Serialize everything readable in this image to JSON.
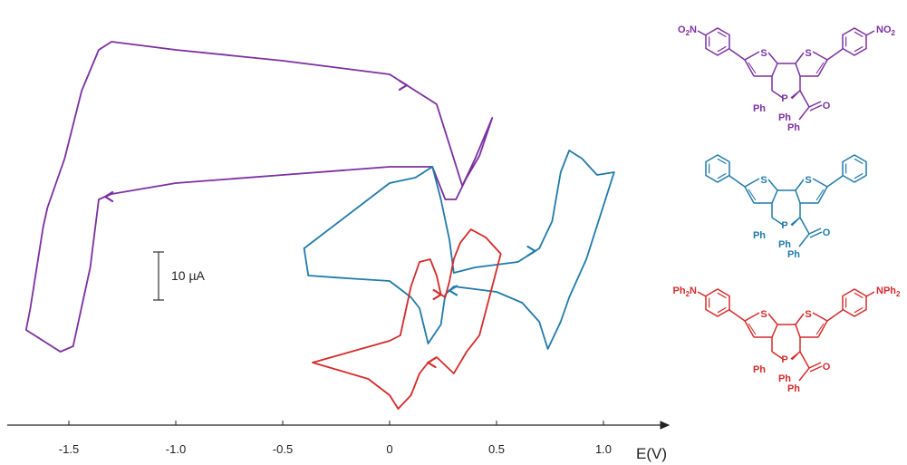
{
  "chart_data": {
    "type": "line",
    "title": "",
    "xlabel": "E(V)",
    "ylabel": "",
    "xlim": [
      -1.75,
      1.3
    ],
    "x_ticks": [
      {
        "value": -1.5,
        "label": "-1.5"
      },
      {
        "value": -1.0,
        "label": "-1.0"
      },
      {
        "value": -0.5,
        "label": "-0.5"
      },
      {
        "value": 0.0,
        "label": "0"
      },
      {
        "value": 0.5,
        "label": "0.5"
      },
      {
        "value": 1.0,
        "label": "1.0"
      }
    ],
    "scale_bar": {
      "label": "10 µA",
      "value_uA": 10
    },
    "grid": false,
    "series": [
      {
        "color": "#7b2fa0",
        "compound": "nitrophenyl-substituted",
        "points": [
          [
            0.48,
            -3.0
          ],
          [
            0.4,
            -4.5
          ],
          [
            0.34,
            -5.5
          ],
          [
            0.28,
            -4.0
          ],
          [
            0.22,
            -2.5
          ],
          [
            0.0,
            -1.4
          ],
          [
            -0.5,
            -0.9
          ],
          [
            -1.0,
            -0.5
          ],
          [
            -1.3,
            -0.2
          ],
          [
            -1.36,
            -0.5
          ],
          [
            -1.44,
            -2.0
          ],
          [
            -1.52,
            -4.5
          ],
          [
            -1.6,
            -6.3
          ],
          [
            -1.62,
            -7.0
          ],
          [
            -1.68,
            -10.0
          ],
          [
            -1.7,
            -10.8
          ],
          [
            -1.62,
            -11.2
          ],
          [
            -1.54,
            -11.6
          ],
          [
            -1.48,
            -11.4
          ],
          [
            -1.4,
            -8.5
          ],
          [
            -1.36,
            -6.0
          ],
          [
            -1.3,
            -5.8
          ],
          [
            -1.0,
            -5.4
          ],
          [
            -0.5,
            -5.1
          ],
          [
            0.0,
            -4.8
          ],
          [
            0.2,
            -4.8
          ],
          [
            0.26,
            -6.0
          ],
          [
            0.31,
            -6.0
          ],
          [
            0.36,
            -5.2
          ],
          [
            0.42,
            -4.4
          ],
          [
            0.48,
            -3.0
          ]
        ],
        "arrows": [
          {
            "x": 0.08,
            "dir": "right",
            "branch": "upper"
          },
          {
            "x": -1.33,
            "dir": "left",
            "branch": "lower"
          }
        ]
      },
      {
        "color": "#1f7aa8",
        "compound": "phenyl-substituted",
        "points": [
          [
            1.05,
            -5.0
          ],
          [
            0.97,
            -5.1
          ],
          [
            0.9,
            -4.5
          ],
          [
            0.84,
            -4.2
          ],
          [
            0.8,
            -5.0
          ],
          [
            0.76,
            -6.8
          ],
          [
            0.7,
            -7.8
          ],
          [
            0.6,
            -8.3
          ],
          [
            0.4,
            -8.5
          ],
          [
            0.3,
            -8.7
          ],
          [
            0.28,
            -7.5
          ],
          [
            0.24,
            -6.0
          ],
          [
            0.2,
            -4.8
          ],
          [
            0.16,
            -5.0
          ],
          [
            0.12,
            -5.2
          ],
          [
            0.0,
            -5.4
          ],
          [
            -0.4,
            -7.8
          ],
          [
            -0.38,
            -8.8
          ],
          [
            -0.2,
            -8.9
          ],
          [
            0.0,
            -9.0
          ],
          [
            0.1,
            -9.6
          ],
          [
            0.14,
            -10.0
          ],
          [
            0.18,
            -11.3
          ],
          [
            0.24,
            -10.6
          ],
          [
            0.26,
            -9.5
          ],
          [
            0.3,
            -9.2
          ],
          [
            0.4,
            -9.3
          ],
          [
            0.5,
            -9.4
          ],
          [
            0.62,
            -9.8
          ],
          [
            0.7,
            -10.5
          ],
          [
            0.74,
            -11.5
          ],
          [
            0.8,
            -10.5
          ],
          [
            0.84,
            -9.6
          ],
          [
            0.92,
            -8.2
          ],
          [
            1.05,
            -5.0
          ]
        ],
        "arrows": [
          {
            "x": 0.68,
            "dir": "right",
            "branch": "upper"
          },
          {
            "x": 0.28,
            "dir": "left",
            "branch": "lower"
          }
        ]
      },
      {
        "color": "#d42a2a",
        "compound": "diphenylamino-substituted",
        "points": [
          [
            0.52,
            -8.0
          ],
          [
            0.45,
            -7.4
          ],
          [
            0.38,
            -7.1
          ],
          [
            0.33,
            -7.6
          ],
          [
            0.3,
            -8.2
          ],
          [
            0.28,
            -9.0
          ],
          [
            0.26,
            -9.6
          ],
          [
            0.24,
            -9.5
          ],
          [
            0.22,
            -8.8
          ],
          [
            0.19,
            -8.2
          ],
          [
            0.14,
            -8.3
          ],
          [
            0.1,
            -9.2
          ],
          [
            0.05,
            -11.0
          ],
          [
            0.0,
            -11.2
          ],
          [
            -0.36,
            -12.0
          ],
          [
            -0.1,
            -12.6
          ],
          [
            0.0,
            -13.2
          ],
          [
            0.04,
            -13.7
          ],
          [
            0.1,
            -13.2
          ],
          [
            0.14,
            -12.4
          ],
          [
            0.18,
            -12.0
          ],
          [
            0.22,
            -11.8
          ],
          [
            0.3,
            -12.4
          ],
          [
            0.36,
            -11.6
          ],
          [
            0.42,
            -11.0
          ],
          [
            0.52,
            -8.0
          ]
        ],
        "arrows": [
          {
            "x": 0.24,
            "dir": "right",
            "branch": "upper"
          },
          {
            "x": 0.18,
            "dir": "left",
            "branch": "lower"
          }
        ]
      }
    ]
  },
  "structures": [
    {
      "color": "#7b2fa0",
      "left_group": {
        "main": "O",
        "sub": "2",
        "tail": "N"
      },
      "right_group": {
        "main": "NO",
        "sub": "2",
        "tail": ""
      },
      "thiophene_label": "S",
      "phosphorus_label": "P",
      "ph1": "Ph",
      "ph2": "Ph",
      "ph3": "Ph",
      "oxygen": "O"
    },
    {
      "color": "#1f7aa8",
      "left_group": {
        "main": "",
        "sub": "",
        "tail": ""
      },
      "right_group": {
        "main": "",
        "sub": "",
        "tail": ""
      },
      "thiophene_label": "S",
      "phosphorus_label": "P",
      "ph1": "Ph",
      "ph2": "Ph",
      "ph3": "Ph",
      "oxygen": "O"
    },
    {
      "color": "#d42a2a",
      "left_group": {
        "main": "Ph",
        "sub": "2",
        "tail": "N"
      },
      "right_group": {
        "main": "NPh",
        "sub": "2",
        "tail": ""
      },
      "thiophene_label": "S",
      "phosphorus_label": "P",
      "ph1": "Ph",
      "ph2": "Ph",
      "ph3": "Ph",
      "oxygen": "O"
    }
  ]
}
